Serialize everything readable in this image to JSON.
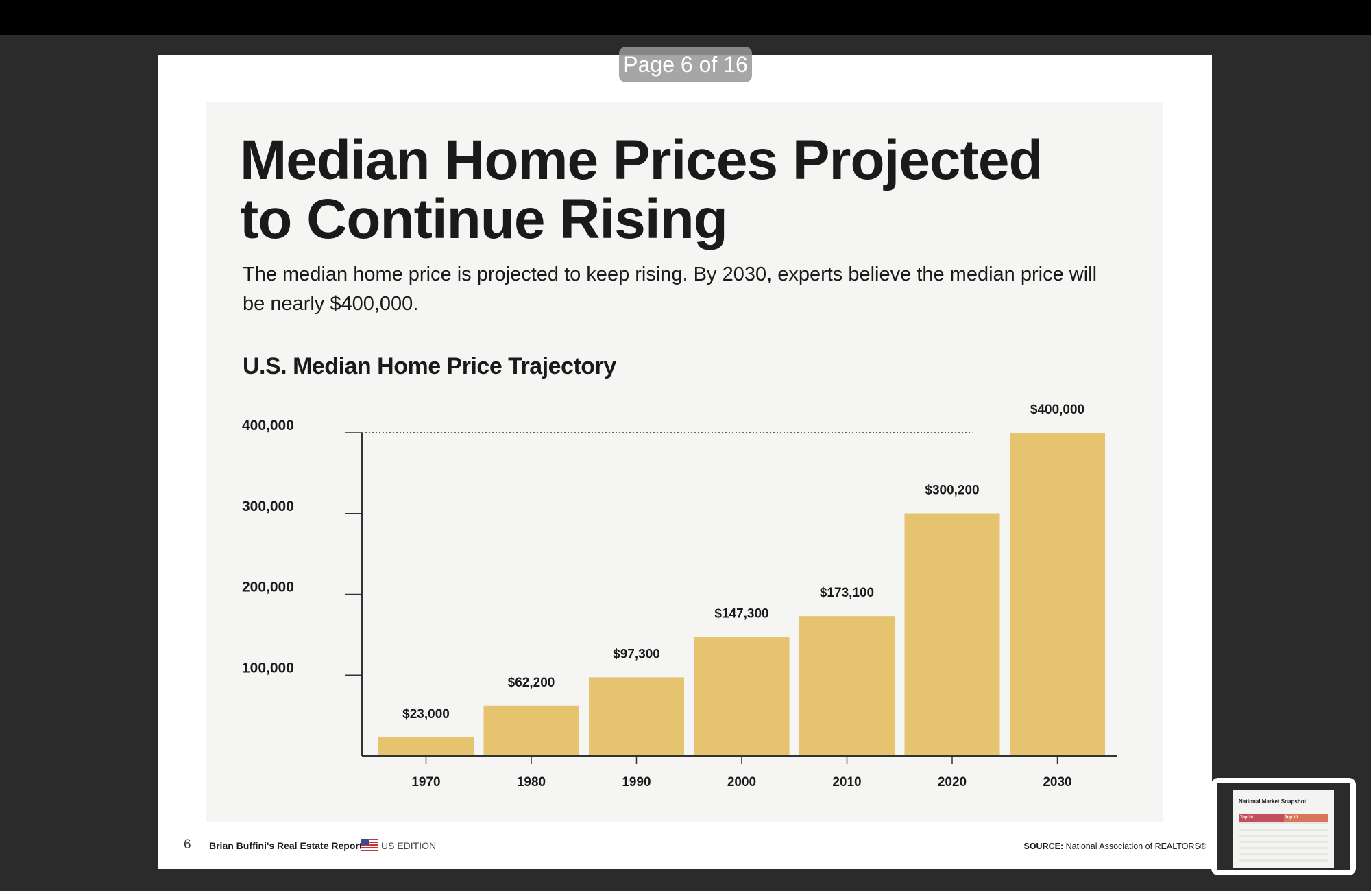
{
  "viewer": {
    "page_indicator": "Page 6 of 16"
  },
  "page": {
    "title_line1": "Median Home Prices Projected",
    "title_line2": "to Continue Rising",
    "subtitle": "The median home price is projected to keep rising. By 2030, experts believe the median price will be nearly $400,000.",
    "footer": {
      "page_number": "6",
      "report_name": "Brian Buffini's Real Estate Report",
      "edition": "US EDITION",
      "source_label": "SOURCE:",
      "source_text": "National Association of REALTORS®"
    }
  },
  "thumbnail": {
    "title": "National Market Snapshot",
    "badge1": "Top 10",
    "badge2": "Top 10"
  },
  "chart_data": {
    "type": "bar",
    "title": "U.S. Median Home Price Trajectory",
    "categories": [
      "1970",
      "1980",
      "1990",
      "2000",
      "2010",
      "2020",
      "2030"
    ],
    "values": [
      23000,
      62200,
      97300,
      147300,
      173100,
      300200,
      400000
    ],
    "value_labels": [
      "$23,000",
      "$62,200",
      "$97,300",
      "$147,300",
      "$173,100",
      "$300,200",
      "$400,000"
    ],
    "yticks": [
      100000,
      200000,
      300000,
      400000
    ],
    "ytick_labels": [
      "100,000",
      "200,000",
      "300,000",
      "400,000"
    ],
    "ylim": [
      0,
      400000
    ],
    "bar_color": "#e5c36f",
    "reference_line": 400000
  }
}
